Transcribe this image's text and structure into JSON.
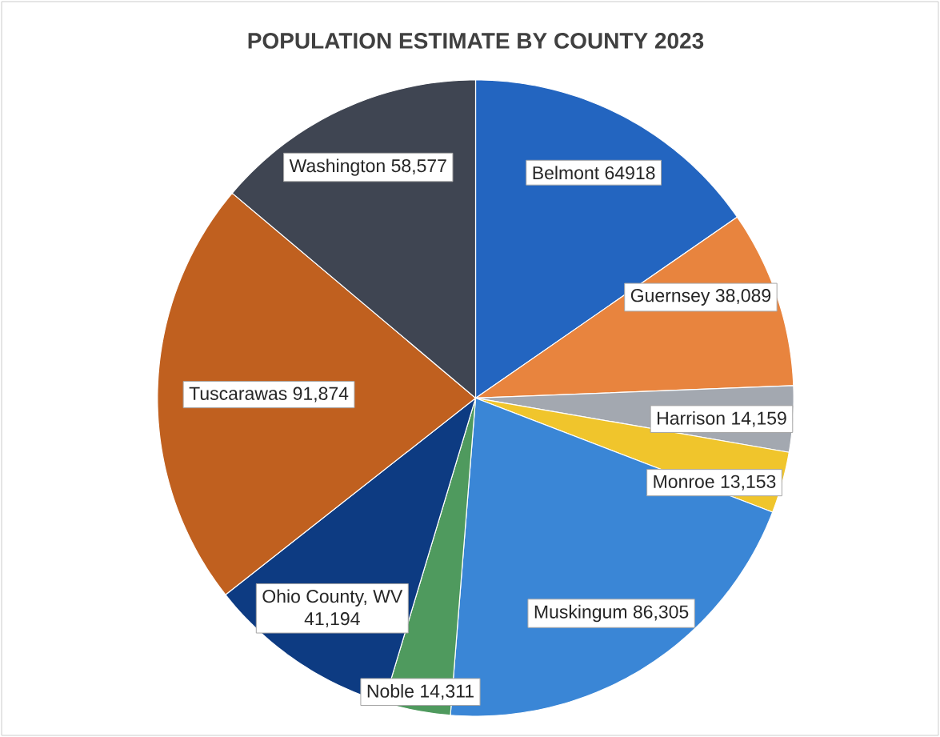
{
  "chart_data": {
    "type": "pie",
    "title": "POPULATION ESTIMATE BY COUNTY 2023",
    "categories": [
      "Belmont",
      "Guernsey",
      "Harrison",
      "Monroe",
      "Muskingum",
      "Noble",
      "Ohio County, WV",
      "Tuscarawas",
      "Washington"
    ],
    "values": [
      64918,
      38089,
      14159,
      13153,
      86305,
      14311,
      41194,
      91874,
      58577
    ],
    "value_labels": [
      "64918",
      "38,089",
      "14,159",
      "13,153",
      "86,305",
      "14,311",
      "41,194",
      "91,874",
      "58,577"
    ],
    "colors": [
      "#2365c0",
      "#e8843e",
      "#a3a8b0",
      "#f0c52c",
      "#3a86d6",
      "#4f9a5e",
      "#0d3b82",
      "#c0601f",
      "#3f4552"
    ]
  }
}
